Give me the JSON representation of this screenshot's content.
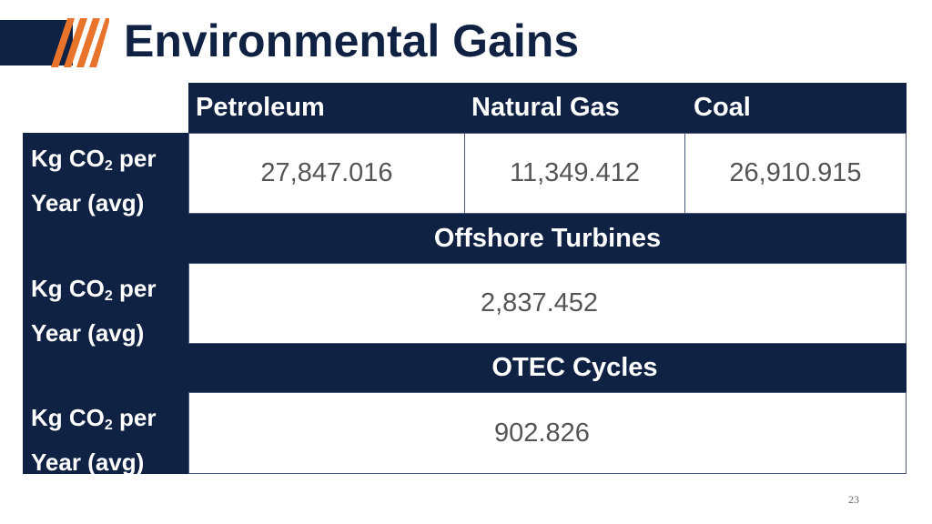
{
  "slide": {
    "title": "Environmental Gains",
    "page_number": "23"
  },
  "table": {
    "columns": [
      "Petroleum",
      "Natural Gas",
      "Coal"
    ],
    "row_label": {
      "prefix": "Kg CO",
      "subscript": "2",
      "suffix": " per",
      "line2": "Year (avg)"
    },
    "fossil_values": [
      "27,847.016",
      "11,349.412",
      "26,910.915"
    ],
    "offshore": {
      "heading": "Offshore Turbines",
      "value": "2,837.452"
    },
    "otec": {
      "heading": "OTEC Cycles",
      "value": "902.826"
    }
  },
  "colors": {
    "navy": "#0f2244",
    "orange": "#e8732a",
    "value_text": "#555555"
  }
}
